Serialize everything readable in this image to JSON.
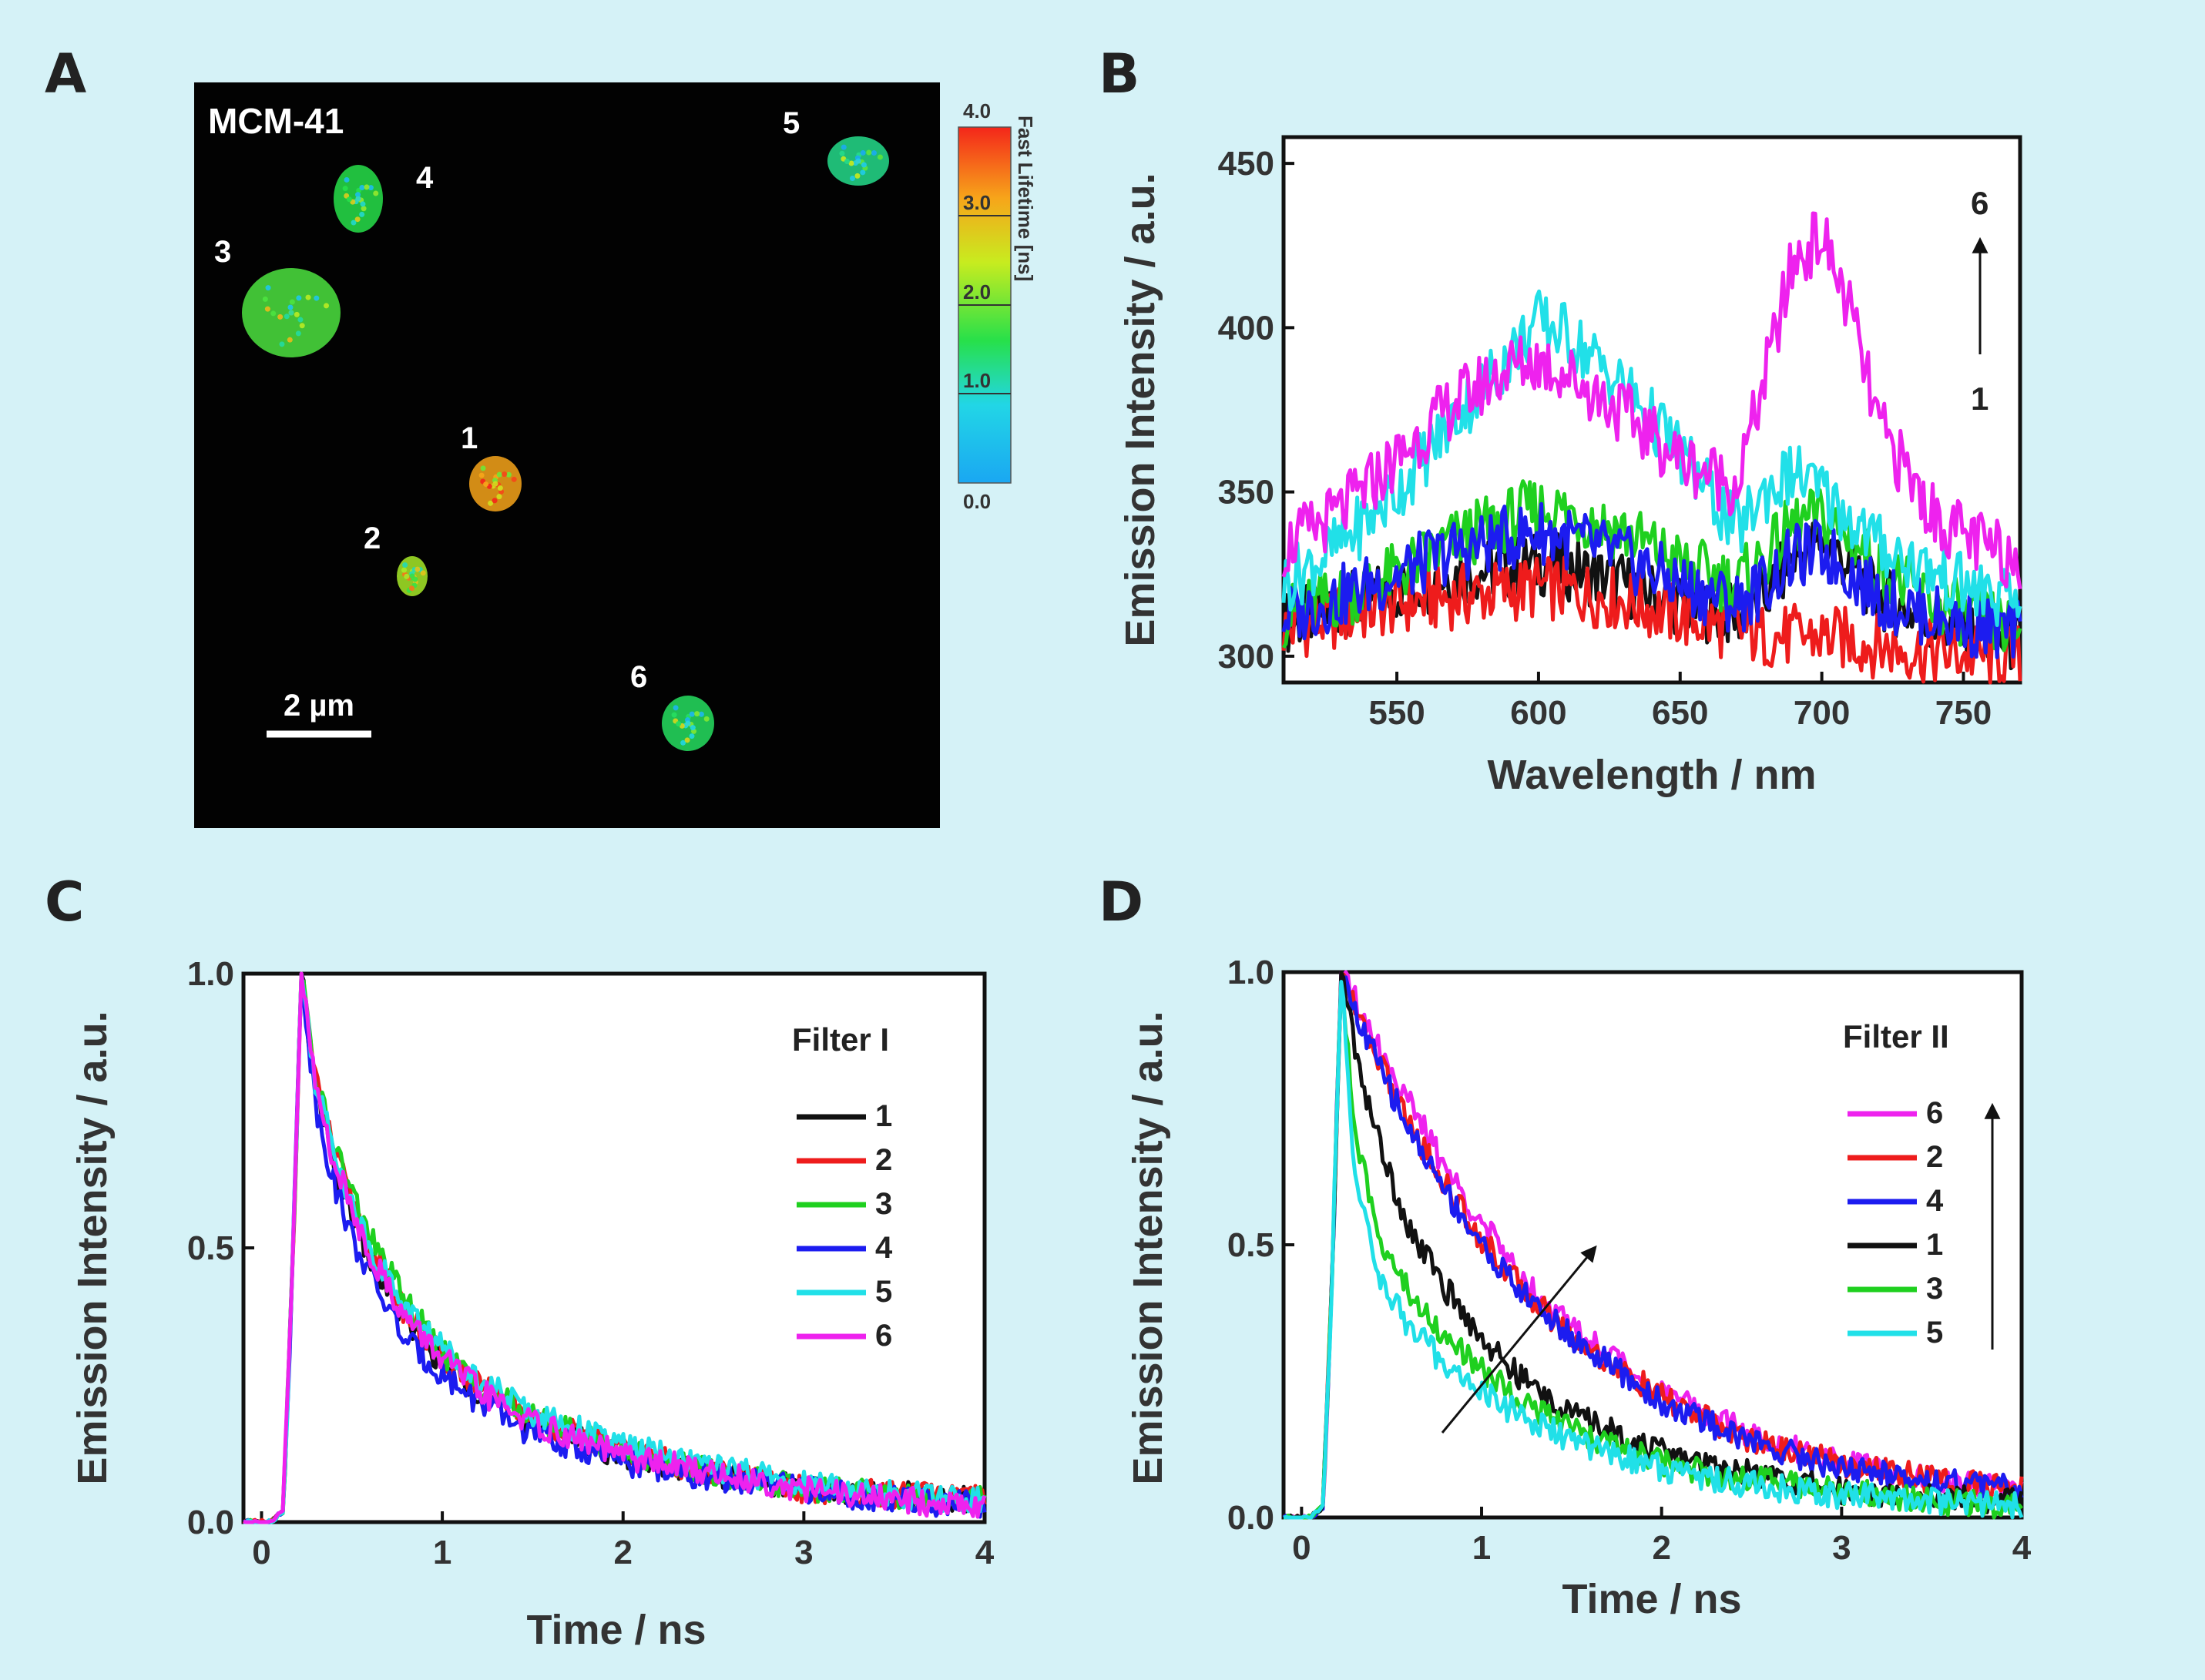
{
  "panel_labels": {
    "a": "A",
    "b": "B",
    "c": "C",
    "d": "D"
  },
  "panel_a": {
    "title": "MCM-41",
    "scale_bar": "2 µm",
    "particles": [
      {
        "id": "1",
        "lifetime_ns": 3.2
      },
      {
        "id": "2",
        "lifetime_ns": 2.3
      },
      {
        "id": "3",
        "lifetime_ns": 1.8
      },
      {
        "id": "4",
        "lifetime_ns": 1.6
      },
      {
        "id": "5",
        "lifetime_ns": 1.3
      },
      {
        "id": "6",
        "lifetime_ns": 1.5
      }
    ],
    "colorbar": {
      "title": "Fast Lifetime [ns]",
      "ticks": [
        "4.0",
        "3.0",
        "2.0",
        "1.0",
        "0.0"
      ],
      "range": [
        0,
        4
      ]
    }
  },
  "chart_data": [
    {
      "panel": "B",
      "type": "line",
      "xlabel": "Wavelength / nm",
      "ylabel": "Emission Intensity / a.u.",
      "xlim": [
        510,
        770
      ],
      "ylim": [
        292,
        458
      ],
      "xticks": [
        "550",
        "600",
        "650",
        "700",
        "750"
      ],
      "yticks": [
        "300",
        "350",
        "400",
        "450"
      ],
      "annotation": {
        "top": "6",
        "bottom": "1"
      },
      "x": [
        510,
        530,
        550,
        570,
        590,
        600,
        610,
        630,
        650,
        670,
        680,
        690,
        700,
        710,
        720,
        740,
        760,
        770
      ],
      "series": [
        {
          "name": "1",
          "color": "#111111",
          "values": [
            310,
            315,
            320,
            325,
            327,
            328,
            327,
            322,
            316,
            312,
            318,
            330,
            335,
            328,
            318,
            310,
            305,
            304
          ]
        },
        {
          "name": "2",
          "color": "#ee1c1c",
          "values": [
            308,
            312,
            316,
            318,
            320,
            321,
            320,
            317,
            312,
            308,
            306,
            306,
            306,
            305,
            303,
            301,
            300,
            300
          ]
        },
        {
          "name": "3",
          "color": "#1fd01f",
          "values": [
            312,
            318,
            325,
            335,
            342,
            345,
            344,
            338,
            328,
            322,
            330,
            340,
            342,
            336,
            326,
            316,
            310,
            308
          ]
        },
        {
          "name": "4",
          "color": "#1c1cf0",
          "values": [
            312,
            318,
            325,
            332,
            336,
            338,
            336,
            330,
            322,
            316,
            322,
            330,
            332,
            326,
            318,
            312,
            308,
            307
          ]
        },
        {
          "name": "5",
          "color": "#21e0e8",
          "values": [
            322,
            334,
            350,
            372,
            392,
            402,
            398,
            382,
            362,
            338,
            350,
            356,
            350,
            342,
            334,
            325,
            318,
            316
          ]
        },
        {
          "name": "6",
          "color": "#ee22ee",
          "values": [
            333,
            344,
            360,
            377,
            388,
            390,
            386,
            374,
            360,
            352,
            385,
            420,
            428,
            405,
            370,
            342,
            332,
            330
          ]
        }
      ]
    },
    {
      "panel": "C",
      "type": "line",
      "xlabel": "Time / ns",
      "ylabel": "Emission Intensity / a.u.",
      "xlim": [
        -0.1,
        4
      ],
      "ylim": [
        0,
        1
      ],
      "xticks": [
        "0",
        "1",
        "2",
        "3",
        "4"
      ],
      "yticks": [
        "0.0",
        "0.5",
        "1.0"
      ],
      "legend_title": "Filter I",
      "x": [
        -0.1,
        0.05,
        0.12,
        0.17,
        0.22,
        0.3,
        0.4,
        0.5,
        0.6,
        0.8,
        1.0,
        1.2,
        1.5,
        2.0,
        2.5,
        3.0,
        3.5,
        4.0
      ],
      "series": [
        {
          "name": "1",
          "color": "#111111",
          "values": [
            0.0,
            0.0,
            0.02,
            0.45,
            1.0,
            0.78,
            0.65,
            0.56,
            0.48,
            0.36,
            0.29,
            0.24,
            0.18,
            0.12,
            0.09,
            0.06,
            0.05,
            0.04
          ]
        },
        {
          "name": "2",
          "color": "#ee1c1c",
          "values": [
            0.0,
            0.0,
            0.02,
            0.45,
            1.0,
            0.8,
            0.68,
            0.58,
            0.5,
            0.38,
            0.3,
            0.25,
            0.19,
            0.13,
            0.09,
            0.06,
            0.05,
            0.04
          ]
        },
        {
          "name": "3",
          "color": "#1fd01f",
          "values": [
            0.0,
            0.0,
            0.02,
            0.45,
            1.0,
            0.8,
            0.69,
            0.6,
            0.52,
            0.4,
            0.31,
            0.25,
            0.19,
            0.13,
            0.09,
            0.06,
            0.05,
            0.04
          ]
        },
        {
          "name": "4",
          "color": "#1c1cf0",
          "values": [
            0.0,
            0.0,
            0.02,
            0.45,
            1.0,
            0.76,
            0.62,
            0.52,
            0.45,
            0.33,
            0.27,
            0.22,
            0.16,
            0.11,
            0.08,
            0.06,
            0.04,
            0.03
          ]
        },
        {
          "name": "5",
          "color": "#21e0e8",
          "values": [
            0.0,
            0.0,
            0.02,
            0.45,
            1.0,
            0.8,
            0.68,
            0.58,
            0.5,
            0.39,
            0.32,
            0.26,
            0.2,
            0.14,
            0.1,
            0.07,
            0.05,
            0.04
          ]
        },
        {
          "name": "6",
          "color": "#ee22ee",
          "values": [
            0.0,
            0.0,
            0.02,
            0.45,
            1.0,
            0.79,
            0.66,
            0.57,
            0.49,
            0.37,
            0.3,
            0.24,
            0.18,
            0.12,
            0.09,
            0.06,
            0.04,
            0.03
          ]
        }
      ]
    },
    {
      "panel": "D",
      "type": "line",
      "xlabel": "Time / ns",
      "ylabel": "Emission Intensity / a.u.",
      "xlim": [
        -0.1,
        4
      ],
      "ylim": [
        0,
        1
      ],
      "xticks": [
        "0",
        "1",
        "2",
        "3",
        "4"
      ],
      "yticks": [
        "0.0",
        "0.5",
        "1.0"
      ],
      "legend_title": "Filter II",
      "x": [
        -0.1,
        0.05,
        0.12,
        0.17,
        0.22,
        0.3,
        0.4,
        0.5,
        0.6,
        0.8,
        1.0,
        1.2,
        1.5,
        2.0,
        2.5,
        3.0,
        3.5,
        4.0
      ],
      "series": [
        {
          "name": "6",
          "color": "#ee22ee",
          "values": [
            0.0,
            0.0,
            0.02,
            0.45,
            1.0,
            0.95,
            0.88,
            0.82,
            0.76,
            0.64,
            0.54,
            0.45,
            0.35,
            0.23,
            0.15,
            0.1,
            0.07,
            0.05
          ]
        },
        {
          "name": "2",
          "color": "#ee1c1c",
          "values": [
            0.0,
            0.0,
            0.02,
            0.45,
            1.0,
            0.93,
            0.86,
            0.79,
            0.72,
            0.61,
            0.51,
            0.43,
            0.33,
            0.22,
            0.14,
            0.1,
            0.07,
            0.05
          ]
        },
        {
          "name": "4",
          "color": "#1c1cf0",
          "values": [
            0.0,
            0.0,
            0.02,
            0.45,
            1.0,
            0.92,
            0.85,
            0.78,
            0.71,
            0.6,
            0.5,
            0.42,
            0.33,
            0.21,
            0.14,
            0.09,
            0.07,
            0.05
          ]
        },
        {
          "name": "1",
          "color": "#111111",
          "values": [
            0.0,
            0.0,
            0.02,
            0.45,
            1.0,
            0.86,
            0.72,
            0.62,
            0.53,
            0.42,
            0.33,
            0.26,
            0.19,
            0.12,
            0.08,
            0.05,
            0.04,
            0.03
          ]
        },
        {
          "name": "3",
          "color": "#1fd01f",
          "values": [
            0.0,
            0.0,
            0.02,
            0.45,
            1.0,
            0.7,
            0.55,
            0.47,
            0.41,
            0.33,
            0.27,
            0.22,
            0.16,
            0.1,
            0.07,
            0.05,
            0.03,
            0.02
          ]
        },
        {
          "name": "5",
          "color": "#21e0e8",
          "values": [
            0.0,
            0.0,
            0.02,
            0.45,
            1.0,
            0.62,
            0.47,
            0.4,
            0.35,
            0.28,
            0.23,
            0.19,
            0.14,
            0.09,
            0.06,
            0.04,
            0.03,
            0.02
          ]
        }
      ]
    }
  ]
}
